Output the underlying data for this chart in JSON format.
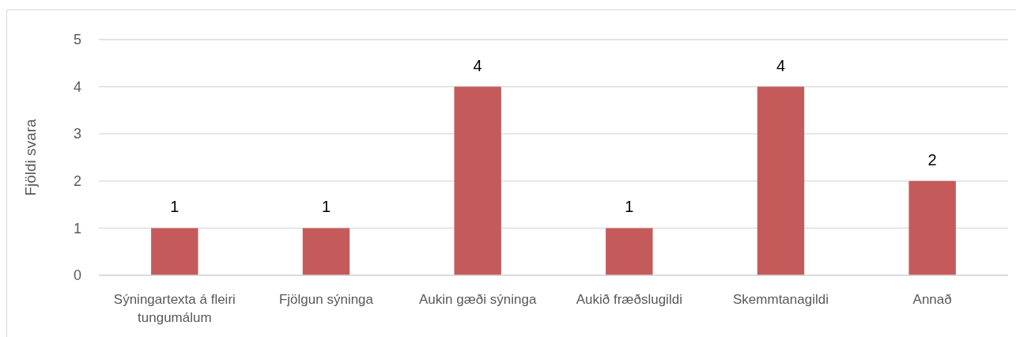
{
  "chart_data": {
    "type": "bar",
    "ylabel": "Fjöldi svara",
    "categories": [
      "Sýningartexta á fleiri tungumálum",
      "Fjölgun sýninga",
      "Aukin gæði sýninga",
      "Aukið fræðslugildi",
      "Skemmtanagildi",
      "Annað"
    ],
    "values": [
      1,
      1,
      4,
      1,
      4,
      2
    ],
    "color": "#c55a5a",
    "ylim": [
      0,
      5
    ],
    "yticks": [
      0,
      1,
      2,
      3,
      4,
      5
    ],
    "grid": "y",
    "data_labels": true
  }
}
